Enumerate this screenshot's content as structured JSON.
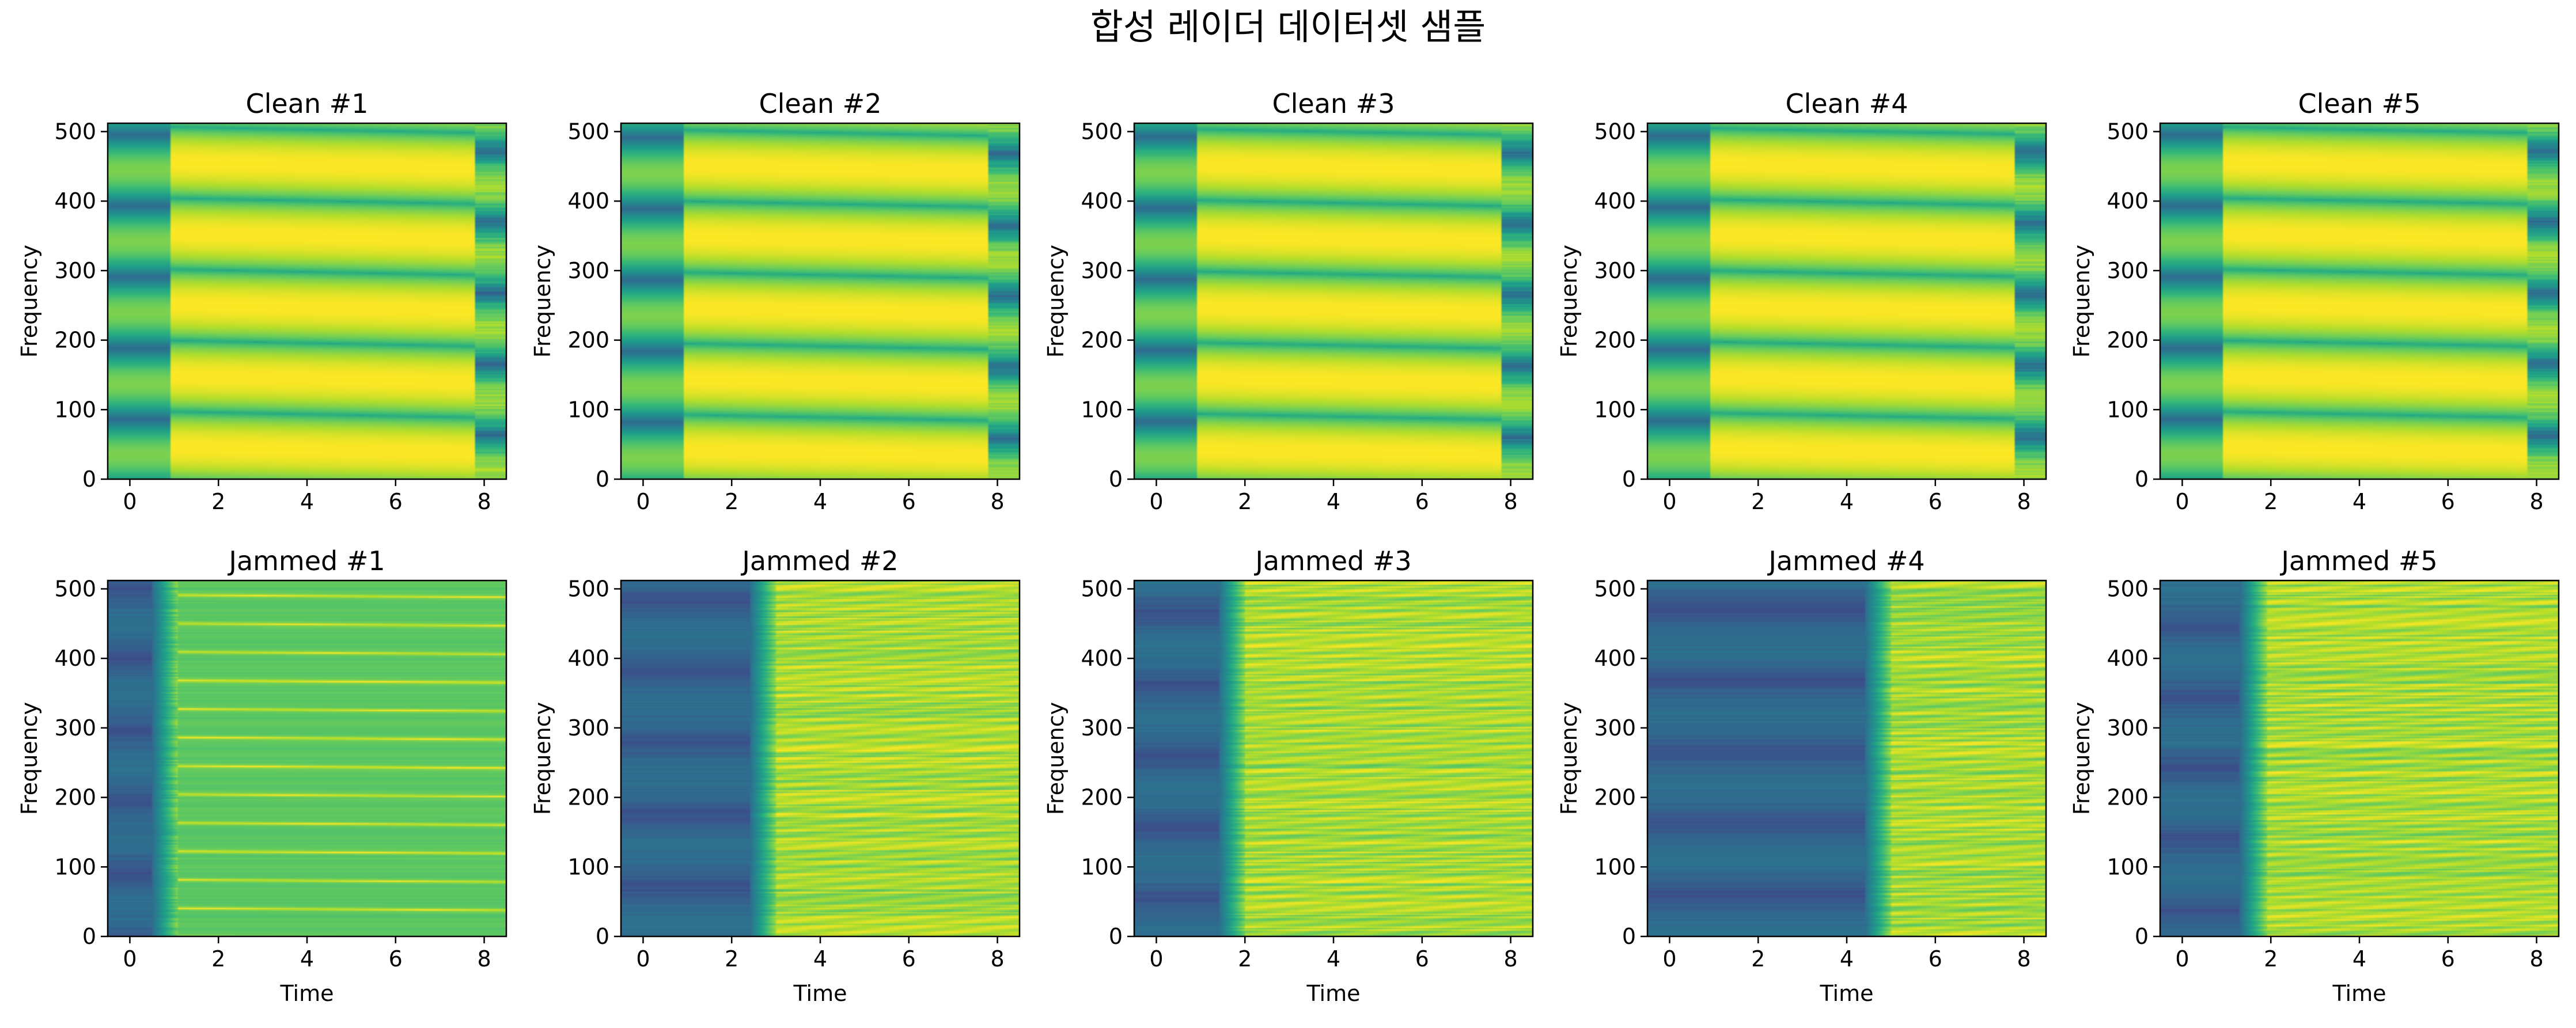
{
  "figure": {
    "suptitle": "합성 레이더 데이터셋 샘플"
  },
  "chart_data": {
    "type": "heatmap",
    "colormap": "viridis",
    "grid": false,
    "xlim": [
      -0.5,
      8.5
    ],
    "ylim": [
      0,
      512
    ],
    "xticks": [
      0,
      2,
      4,
      6,
      8
    ],
    "yticks": [
      0,
      100,
      200,
      300,
      400,
      500
    ],
    "tick_labels_x": [
      "0",
      "2",
      "4",
      "6",
      "8"
    ],
    "tick_labels_y": [
      "0",
      "100",
      "200",
      "300",
      "400",
      "500"
    ],
    "panels": [
      {
        "title": "Clean #1",
        "ylabel": "Frequency",
        "xlabel": "",
        "kind": "clean",
        "jam_end": null,
        "seed": 1
      },
      {
        "title": "Clean #2",
        "ylabel": "Frequency",
        "xlabel": "",
        "kind": "clean",
        "jam_end": null,
        "seed": 2
      },
      {
        "title": "Clean #3",
        "ylabel": "Frequency",
        "xlabel": "",
        "kind": "clean",
        "jam_end": null,
        "seed": 3
      },
      {
        "title": "Clean #4",
        "ylabel": "Frequency",
        "xlabel": "",
        "kind": "clean",
        "jam_end": null,
        "seed": 4
      },
      {
        "title": "Clean #5",
        "ylabel": "Frequency",
        "xlabel": "",
        "kind": "clean",
        "jam_end": null,
        "seed": 5
      },
      {
        "title": "Jammed #1",
        "ylabel": "Frequency",
        "xlabel": "Time",
        "kind": "jammed",
        "jam_end": 0.5,
        "seed": 6
      },
      {
        "title": "Jammed #2",
        "ylabel": "Frequency",
        "xlabel": "Time",
        "kind": "jammed",
        "jam_end": 2.4,
        "seed": 7
      },
      {
        "title": "Jammed #3",
        "ylabel": "Frequency",
        "xlabel": "Time",
        "kind": "jammed",
        "jam_end": 1.4,
        "seed": 8
      },
      {
        "title": "Jammed #4",
        "ylabel": "Frequency",
        "xlabel": "Time",
        "kind": "jammed",
        "jam_end": 4.4,
        "seed": 9
      },
      {
        "title": "Jammed #5",
        "ylabel": "Frequency",
        "xlabel": "Time",
        "kind": "jammed",
        "jam_end": 1.3,
        "seed": 10
      }
    ]
  }
}
